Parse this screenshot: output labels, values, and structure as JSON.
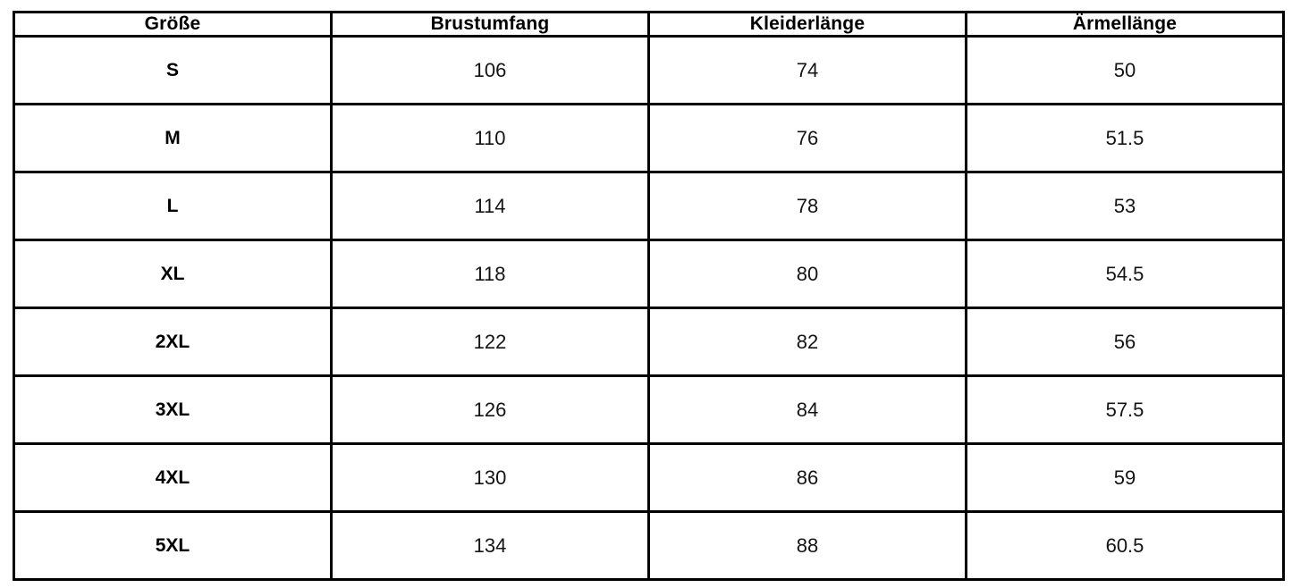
{
  "page": {
    "background": "#ffffff",
    "table_border_color": "#000000",
    "header_text_color": "#000000",
    "cell_text_color": "#141414"
  },
  "table": {
    "headers": [
      "Größe",
      "Brustumfang",
      "Kleiderlänge",
      "Ärmellänge"
    ],
    "rows": [
      [
        "S",
        "106",
        "74",
        "50"
      ],
      [
        "M",
        "110",
        "76",
        "51.5"
      ],
      [
        "L",
        "114",
        "78",
        "53"
      ],
      [
        "XL",
        "118",
        "80",
        "54.5"
      ],
      [
        "2XL",
        "122",
        "82",
        "56"
      ],
      [
        "3XL",
        "126",
        "84",
        "57.5"
      ],
      [
        "4XL",
        "130",
        "86",
        "59"
      ],
      [
        "5XL",
        "134",
        "88",
        "60.5"
      ]
    ]
  }
}
